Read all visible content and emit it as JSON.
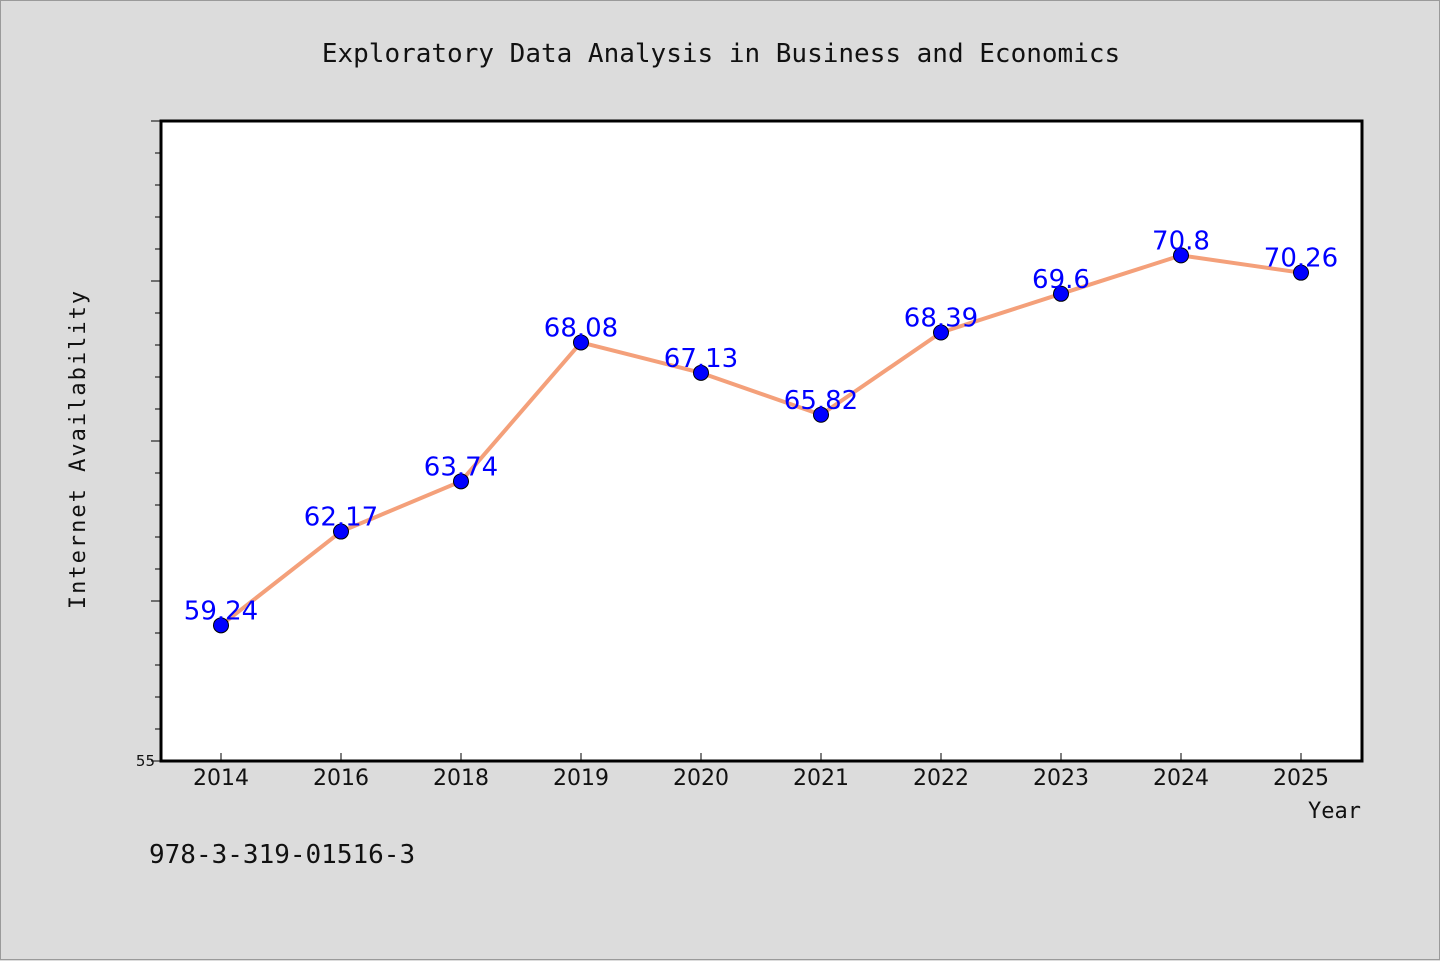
{
  "chart_data": {
    "type": "line",
    "title": "Exploratory Data Analysis in Business and Economics",
    "xlabel": "Year",
    "ylabel": "Internet Availability",
    "categories": [
      "2014",
      "2016",
      "2018",
      "2019",
      "2020",
      "2021",
      "2022",
      "2023",
      "2024",
      "2025"
    ],
    "series": [
      {
        "values": [
          59.24,
          62.17,
          63.74,
          68.08,
          67.13,
          65.82,
          68.39,
          69.6,
          70.8,
          70.26
        ],
        "data_labels": [
          "59.24",
          "62.17",
          "63.74",
          "68.08",
          "67.13",
          "65.82",
          "68.39",
          "69.6",
          "70.8",
          "70.26"
        ],
        "line_color": "#f4a07a",
        "marker_color": "#0000ff"
      }
    ],
    "ylim": [
      55,
      75
    ],
    "ytick_labels": [
      "55"
    ],
    "grid": false,
    "legend": "none"
  },
  "footer": {
    "isbn": "978-3-319-01516-3"
  }
}
